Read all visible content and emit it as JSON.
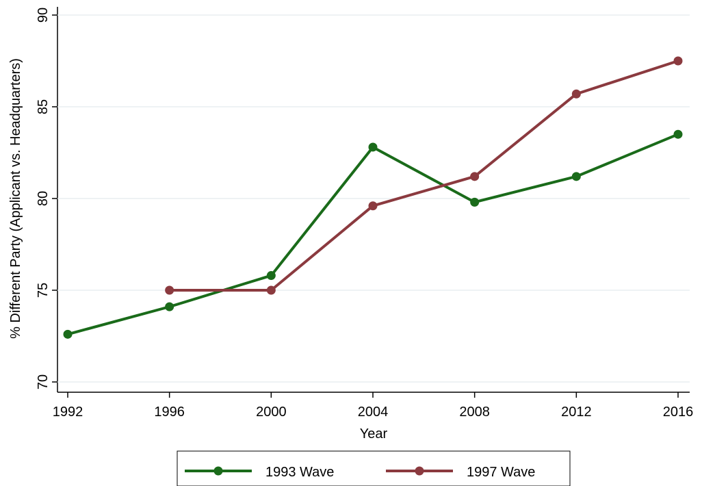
{
  "chart_data": {
    "type": "line",
    "title": "",
    "xlabel": "Year",
    "ylabel": "% Different Party (Applicant vs. Headquarters)",
    "x_ticks": [
      "1992",
      "1996",
      "2000",
      "2004",
      "2008",
      "2012",
      "2016"
    ],
    "y_ticks": [
      "70",
      "75",
      "80",
      "85",
      "90"
    ],
    "xlim": [
      1992,
      2016
    ],
    "ylim": [
      70,
      90
    ],
    "grid": "horizontal",
    "legend_position": "bottom",
    "series": [
      {
        "name": "1993 Wave",
        "color": "#1a6b1a",
        "x": [
          1992,
          1996,
          2000,
          2004,
          2008,
          2012,
          2016
        ],
        "y": [
          72.6,
          74.1,
          75.8,
          82.8,
          79.8,
          81.2,
          83.5
        ]
      },
      {
        "name": "1997 Wave",
        "color": "#8b3a3f",
        "x": [
          1996,
          2000,
          2004,
          2008,
          2012,
          2016
        ],
        "y": [
          75.0,
          75.0,
          79.6,
          81.2,
          85.7,
          87.5
        ]
      }
    ]
  }
}
